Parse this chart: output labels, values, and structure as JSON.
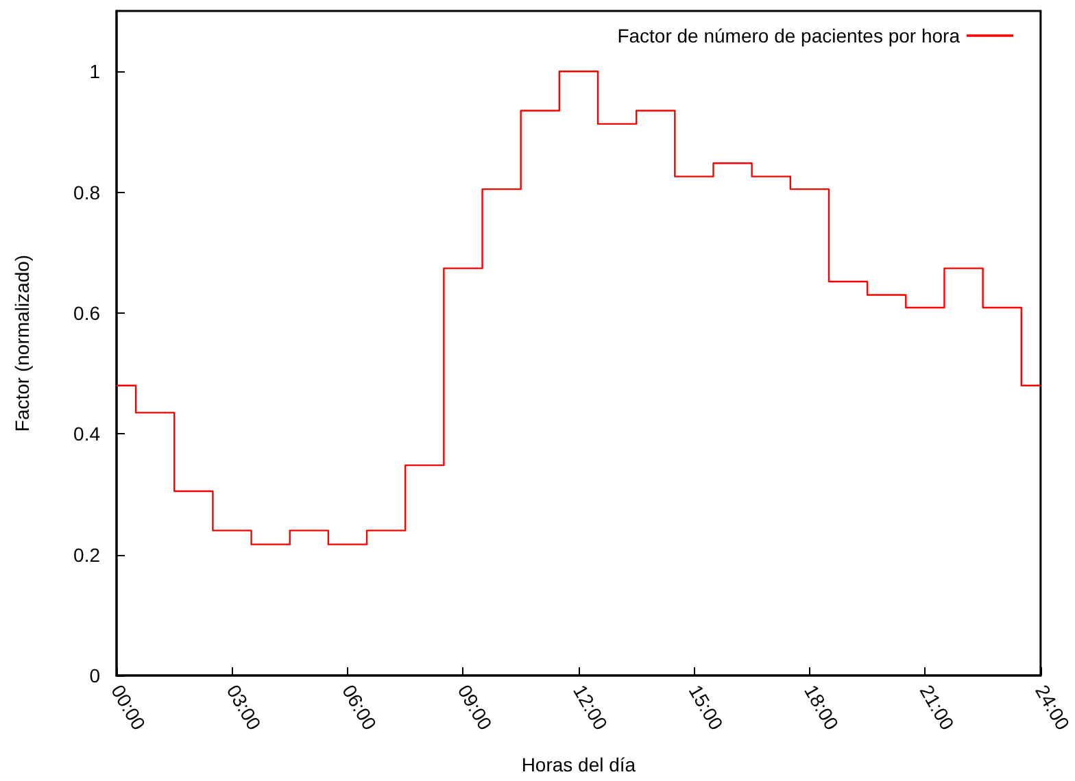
{
  "chart_data": {
    "type": "step",
    "xlabel": "Horas del día",
    "ylabel": "Factor (normalizado)",
    "x": [
      0,
      1,
      2,
      3,
      4,
      5,
      6,
      7,
      8,
      9,
      10,
      11,
      12,
      13,
      14,
      15,
      16,
      17,
      18,
      19,
      20,
      21,
      22,
      23,
      24
    ],
    "series": [
      {
        "name": "Factor de número de pacientes por hora",
        "color": "#ff0000",
        "values": [
          0.48,
          0.435,
          0.305,
          0.24,
          0.217,
          0.24,
          0.217,
          0.24,
          0.348,
          0.674,
          0.805,
          0.935,
          1.0,
          0.913,
          0.935,
          0.826,
          0.848,
          0.826,
          0.805,
          0.652,
          0.63,
          0.609,
          0.674,
          0.609,
          0.48
        ]
      }
    ],
    "xlim": [
      0,
      24
    ],
    "xticks": [
      {
        "value": 0,
        "label": "00:00"
      },
      {
        "value": 3,
        "label": "03:00"
      },
      {
        "value": 6,
        "label": "06:00"
      },
      {
        "value": 9,
        "label": "09:00"
      },
      {
        "value": 12,
        "label": "12:00"
      },
      {
        "value": 15,
        "label": "15:00"
      },
      {
        "value": 18,
        "label": "18:00"
      },
      {
        "value": 21,
        "label": "21:00"
      },
      {
        "value": 24,
        "label": "24:00"
      }
    ],
    "ylim": [
      0,
      1.1
    ],
    "yticks": [
      0,
      0.2,
      0.4,
      0.6,
      0.8,
      1
    ],
    "legend": "top right",
    "marker": "none",
    "line_style": "solid"
  }
}
